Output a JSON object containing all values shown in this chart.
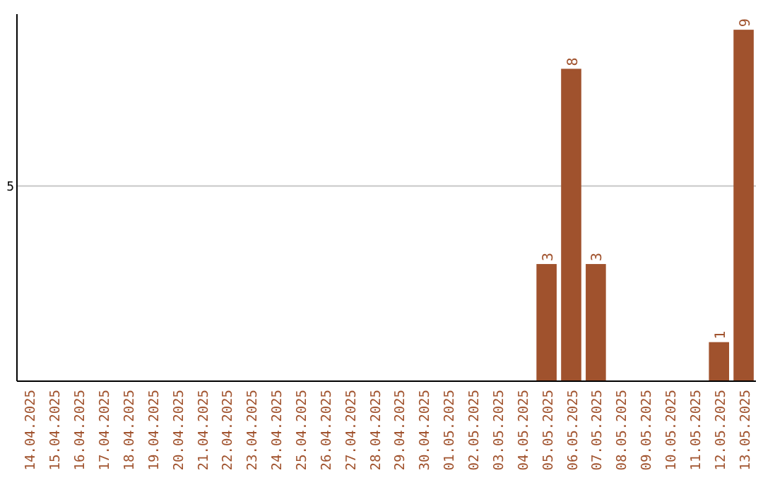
{
  "chart_data": {
    "type": "bar",
    "categories": [
      "14.04.2025",
      "15.04.2025",
      "16.04.2025",
      "17.04.2025",
      "18.04.2025",
      "19.04.2025",
      "20.04.2025",
      "21.04.2025",
      "22.04.2025",
      "23.04.2025",
      "24.04.2025",
      "25.04.2025",
      "26.04.2025",
      "27.04.2025",
      "28.04.2025",
      "29.04.2025",
      "30.04.2025",
      "01.05.2025",
      "02.05.2025",
      "03.05.2025",
      "04.05.2025",
      "05.05.2025",
      "06.05.2025",
      "07.05.2025",
      "08.05.2025",
      "09.05.2025",
      "10.05.2025",
      "11.05.2025",
      "12.05.2025",
      "13.05.2025"
    ],
    "values": [
      null,
      null,
      null,
      null,
      null,
      null,
      null,
      null,
      null,
      null,
      null,
      null,
      null,
      null,
      null,
      null,
      null,
      null,
      null,
      null,
      null,
      3,
      8,
      3,
      null,
      null,
      null,
      null,
      1,
      9
    ],
    "data_labels": true,
    "color": "#a0522d",
    "ylim": [
      0,
      9.4
    ],
    "yticks": [
      5
    ],
    "grid": "y"
  }
}
